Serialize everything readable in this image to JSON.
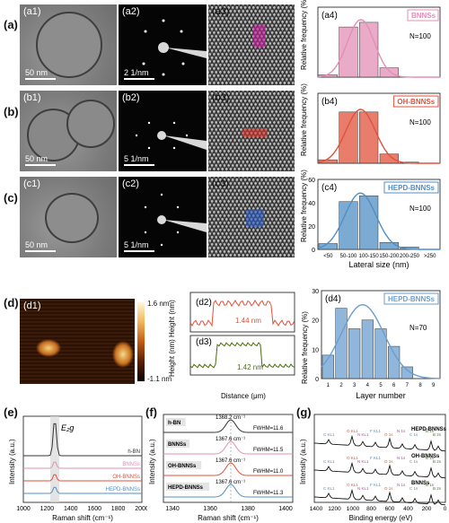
{
  "row_labels": [
    "(a)",
    "(b)",
    "(c)",
    "(d)",
    "(e)",
    "(f)",
    "(g)"
  ],
  "tem": [
    {
      "label": "(a1)",
      "scale": "50 nm"
    },
    {
      "label": "(b1)",
      "scale": "50 nm"
    },
    {
      "label": "(c1)",
      "scale": "50 nm"
    }
  ],
  "saed": [
    {
      "label": "(a2)",
      "scale": "2 1/nm"
    },
    {
      "label": "(b2)",
      "scale": "5 1/nm"
    },
    {
      "label": "(c2)",
      "scale": "5 1/nm"
    }
  ],
  "hrtem": [
    {
      "label": "(a3)"
    },
    {
      "label": "(b3)"
    },
    {
      "label": "(c3)"
    }
  ],
  "afm": {
    "label": "(d1)",
    "scale_max": "1.6 nm",
    "scale_min": "-1.1 nm"
  },
  "height": {
    "ylabel": "Height (nm) Height (nm)",
    "xlabel": "Distance (μm)",
    "d2": {
      "label": "(d2)",
      "annotation": "1.44 nm"
    },
    "d3": {
      "label": "(d3)",
      "annotation": "1.42 nm"
    }
  },
  "chart_data": [
    {
      "id": "a4",
      "type": "bar",
      "label": "(a4)",
      "legend": "BNNSs",
      "note": "N=100",
      "categories": [
        "<50",
        "50-100",
        "100-150",
        "150-200",
        "200-250",
        ">250"
      ],
      "values": [
        2,
        43,
        47,
        8,
        0,
        0
      ],
      "ylim": [
        0,
        60
      ],
      "color": "#e38fb5"
    },
    {
      "id": "b4",
      "type": "bar",
      "label": "(b4)",
      "legend": "OH-BNNSs",
      "note": "N=100",
      "categories": [
        "<50",
        "50-100",
        "100-150",
        "150-200",
        "200-250",
        ">250"
      ],
      "values": [
        3,
        44,
        44,
        8,
        1,
        0
      ],
      "ylim": [
        0,
        60
      ],
      "color": "#e2513a"
    },
    {
      "id": "c4",
      "type": "bar",
      "label": "(c4)",
      "legend": "HEPD-BNNSs",
      "note": "N=100",
      "categories": [
        "<50",
        "50-100",
        "100-150",
        "150-200",
        "200-250",
        ">250"
      ],
      "values": [
        5,
        41,
        46,
        6,
        2,
        0
      ],
      "ylim": [
        0,
        60
      ],
      "color": "#4f8fc4",
      "xlabel": "Lateral size (nm)",
      "ylabel": "Relative frequency (%)",
      "ticks": [
        "0",
        "20",
        "40",
        "60"
      ]
    },
    {
      "id": "d4",
      "type": "bar",
      "label": "(d4)",
      "legend": "HEPD-BNNSs",
      "note": "N=70",
      "categories": [
        "1",
        "2",
        "3",
        "4",
        "5",
        "6",
        "7",
        "8",
        "9"
      ],
      "values": [
        8,
        24,
        17,
        20,
        17,
        11,
        4,
        0,
        0
      ],
      "ylim": [
        0,
        30
      ],
      "color": "#6b9ed0",
      "xlabel": "Layer number",
      "ylabel": "Relative frequency (%)",
      "ticks": [
        "0",
        "10",
        "20",
        "30"
      ]
    },
    {
      "id": "e",
      "type": "line",
      "label": "(e)",
      "xlabel": "Raman shift (cm⁻¹)",
      "ylabel": "Intensity (a.u.)",
      "peak_label": "E₂g",
      "x_ticks": [
        "1000",
        "1200",
        "1400",
        "1600",
        "1800",
        "2000"
      ],
      "series": [
        {
          "name": "h-BN",
          "color": "#333333"
        },
        {
          "name": "BNNSs",
          "color": "#e38fb5"
        },
        {
          "name": "OH-BNNSs",
          "color": "#e2513a"
        },
        {
          "name": "HEPD-BNNSs",
          "color": "#4f8fc4"
        }
      ]
    },
    {
      "id": "f",
      "type": "line",
      "label": "(f)",
      "xlabel": "Raman shift (cm⁻¹)",
      "ylabel": "Intensity (a.u.)",
      "x_ticks": [
        "1340",
        "1360",
        "1380",
        "1400"
      ],
      "series": [
        {
          "name": "h-BN",
          "peak": "1368.2 cm⁻¹",
          "fwhm": "FWHM=11.6",
          "color": "#333333"
        },
        {
          "name": "BNNSs",
          "peak": "1367.6 cm⁻¹",
          "fwhm": "FWHM=11.5",
          "color": "#e38fb5"
        },
        {
          "name": "OH-BNNSs",
          "peak": "1367.6 cm⁻¹",
          "fwhm": "FWHM=11.0",
          "color": "#e2513a"
        },
        {
          "name": "HEPD-BNNSs",
          "peak": "1367.6 cm⁻¹",
          "fwhm": "FWHM=11.3",
          "color": "#4f8fc4"
        }
      ]
    },
    {
      "id": "g",
      "type": "line",
      "label": "(g)",
      "xlabel": "Binding energy (eV)",
      "ylabel": "Intensity (a.u.)",
      "x_ticks": [
        "1400",
        "1200",
        "1000",
        "800",
        "600",
        "400",
        "200",
        "0"
      ],
      "series": [
        {
          "name": "HEPD-BNNSs",
          "color": "#111111"
        },
        {
          "name": "OH-BNNSs",
          "color": "#111111"
        },
        {
          "name": "BNNSs",
          "color": "#111111"
        }
      ],
      "peak_labels": [
        "C KL1",
        "O KL1",
        "N KL1",
        "F KL1",
        "O 1s",
        "N 1s",
        "C 1s",
        "B 1s",
        "B 2s"
      ]
    }
  ]
}
